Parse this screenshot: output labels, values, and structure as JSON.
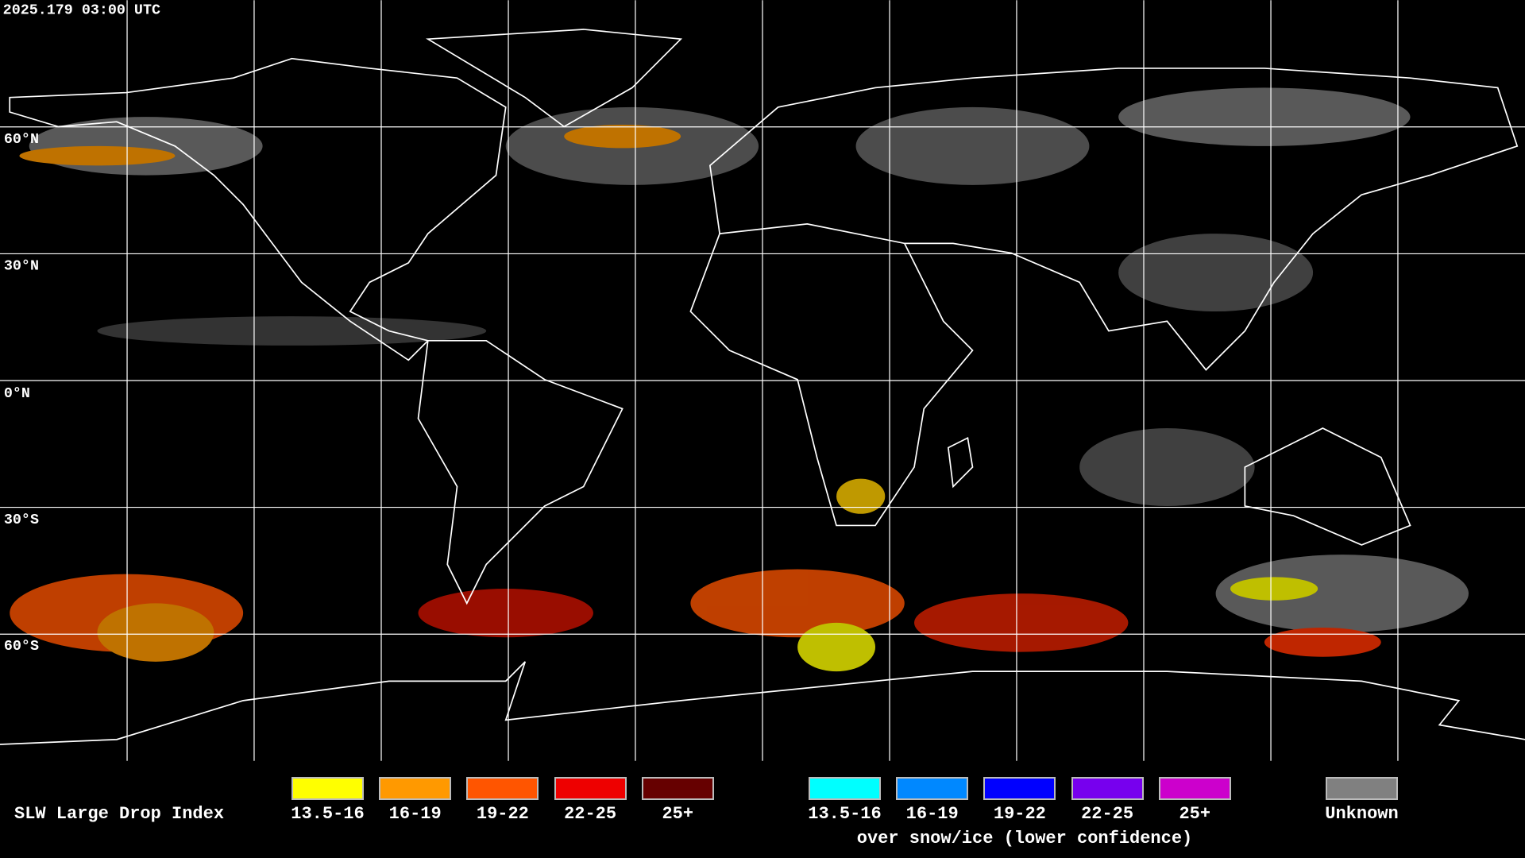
{
  "header": {
    "timestamp": "2025.179 03:00 UTC"
  },
  "map": {
    "latitude_labels": [
      "60°N",
      "30°N",
      "0°N",
      "30°S",
      "60°S"
    ]
  },
  "legend": {
    "title": "SLW Large Drop Index",
    "groups": [
      {
        "items": [
          {
            "label": "13.5-16",
            "color": "#ffff00"
          },
          {
            "label": "16-19",
            "color": "#ff9900"
          },
          {
            "label": "19-22",
            "color": "#ff5500"
          },
          {
            "label": "22-25",
            "color": "#ee0000"
          },
          {
            "label": "25+",
            "color": "#660000"
          }
        ]
      },
      {
        "items": [
          {
            "label": "13.5-16",
            "color": "#00ffff"
          },
          {
            "label": "16-19",
            "color": "#0088ff"
          },
          {
            "label": "19-22",
            "color": "#0000ff"
          },
          {
            "label": "22-25",
            "color": "#7700ee"
          },
          {
            "label": "25+",
            "color": "#cc00cc"
          }
        ],
        "note": "over snow/ice (lower confidence)"
      },
      {
        "items": [
          {
            "label": "Unknown",
            "color": "#808080"
          }
        ]
      }
    ]
  }
}
